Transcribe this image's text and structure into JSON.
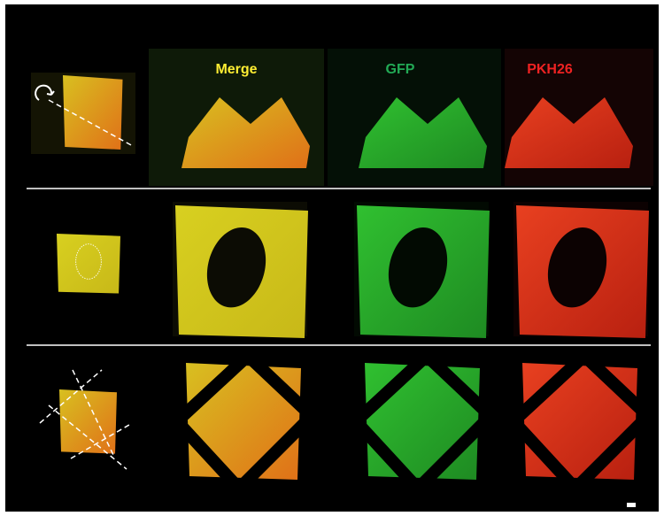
{
  "labels": {
    "merge": "Merge",
    "gfp": "GFP",
    "pkh26": "PKH26"
  }
}
